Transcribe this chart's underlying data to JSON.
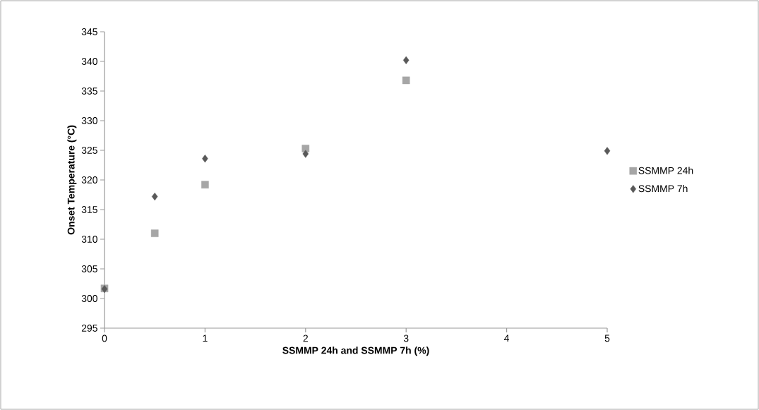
{
  "chart_data": {
    "type": "scatter",
    "xlabel": "SSMMP 24h and SSMMP 7h (%)",
    "ylabel": "Onset Temperature (°C)",
    "xlim": [
      0,
      5
    ],
    "xticks": [
      0,
      1,
      2,
      3,
      4,
      5
    ],
    "ylim": [
      295,
      345
    ],
    "yticks": [
      295,
      300,
      305,
      310,
      315,
      320,
      325,
      330,
      335,
      340,
      345
    ],
    "grid": false,
    "legend": "right",
    "series": [
      {
        "name": "SSMMP 24h",
        "color": "#a6a6a6",
        "marker": "square",
        "x": [
          0,
          0.5,
          1,
          2,
          3
        ],
        "values": [
          301.7,
          311.0,
          319.2,
          325.3,
          336.8
        ]
      },
      {
        "name": "SSMMP 7h",
        "color": "#595959",
        "marker": "diamond",
        "x": [
          0,
          0.5,
          1,
          2,
          3,
          5
        ],
        "values": [
          301.6,
          317.2,
          323.6,
          324.4,
          340.2,
          324.9
        ]
      }
    ]
  }
}
